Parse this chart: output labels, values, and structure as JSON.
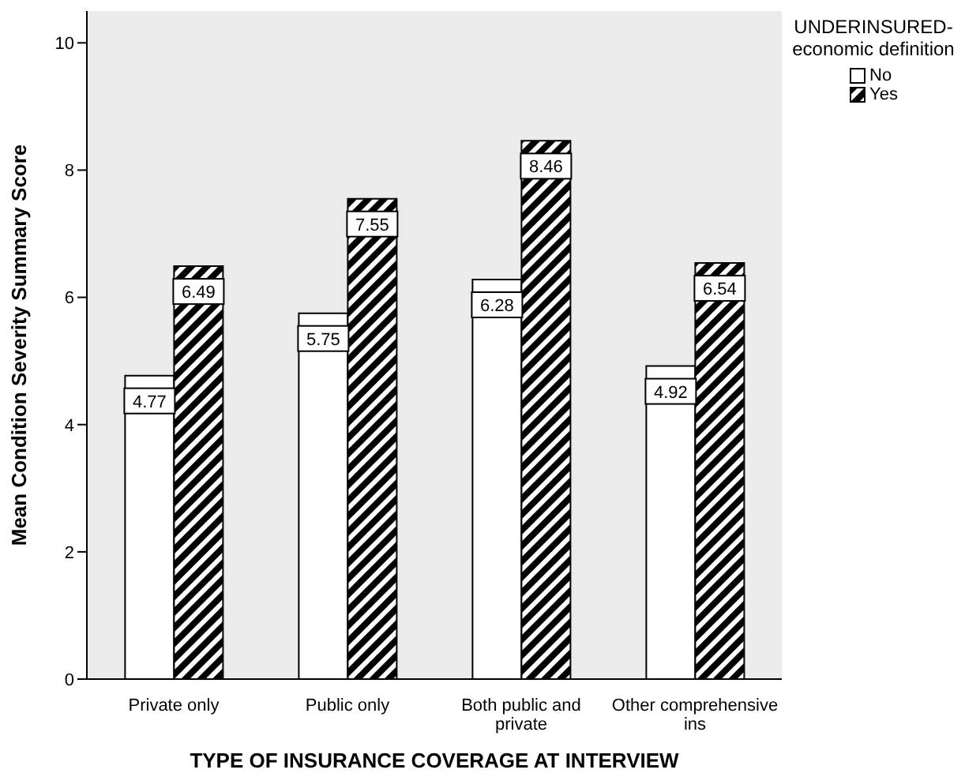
{
  "chart_data": {
    "type": "bar",
    "xlabel": "TYPE OF INSURANCE COVERAGE AT INTERVIEW",
    "ylabel": "Mean Condition Severity Summary Score",
    "legend_title": "UNDERINSURED-economic definition",
    "categories": [
      "Private only",
      "Public only",
      "Both public and private",
      "Other comprehensive ins"
    ],
    "series": [
      {
        "name": "No",
        "color": "#ffffff",
        "values": [
          4.77,
          5.75,
          6.28,
          4.92
        ]
      },
      {
        "name": "Yes",
        "color": "#000000",
        "values": [
          6.49,
          7.55,
          8.46,
          6.54
        ]
      }
    ],
    "ylim": [
      0,
      10.5
    ],
    "yticks": [
      0,
      2,
      4,
      6,
      8,
      10
    ],
    "grid": false,
    "legend": "top right",
    "data_labels": true
  }
}
